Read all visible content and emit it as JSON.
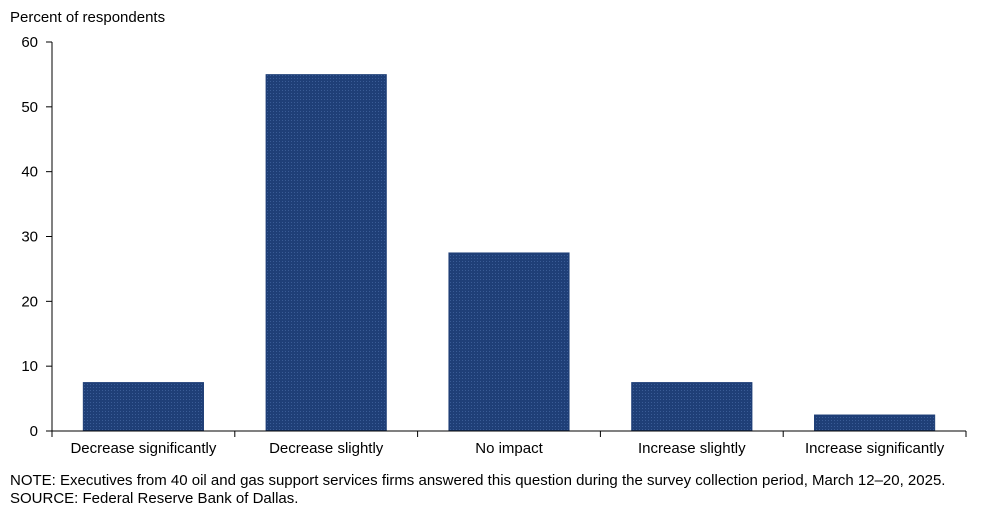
{
  "chart_data": {
    "type": "bar",
    "title": "",
    "ylabel": "Percent of respondents",
    "xlabel": "",
    "categories": [
      "Decrease significantly",
      "Decrease slightly",
      "No impact",
      "Increase slightly",
      "Increase significantly"
    ],
    "values": [
      7.5,
      55.0,
      27.5,
      7.5,
      2.5
    ],
    "ylim": [
      0,
      60
    ],
    "yticks": [
      "0",
      "10",
      "20",
      "30",
      "40",
      "50",
      "60"
    ],
    "grid": false,
    "legend": "none",
    "bar_color": "#1f3f77"
  },
  "notes": {
    "note": "NOTE:  Executives  from 40 oil and gas support services firms answered this question during the survey collection period, March 12–20, 2025.",
    "source": "SOURCE:  Federal Reserve Bank of Dallas."
  }
}
